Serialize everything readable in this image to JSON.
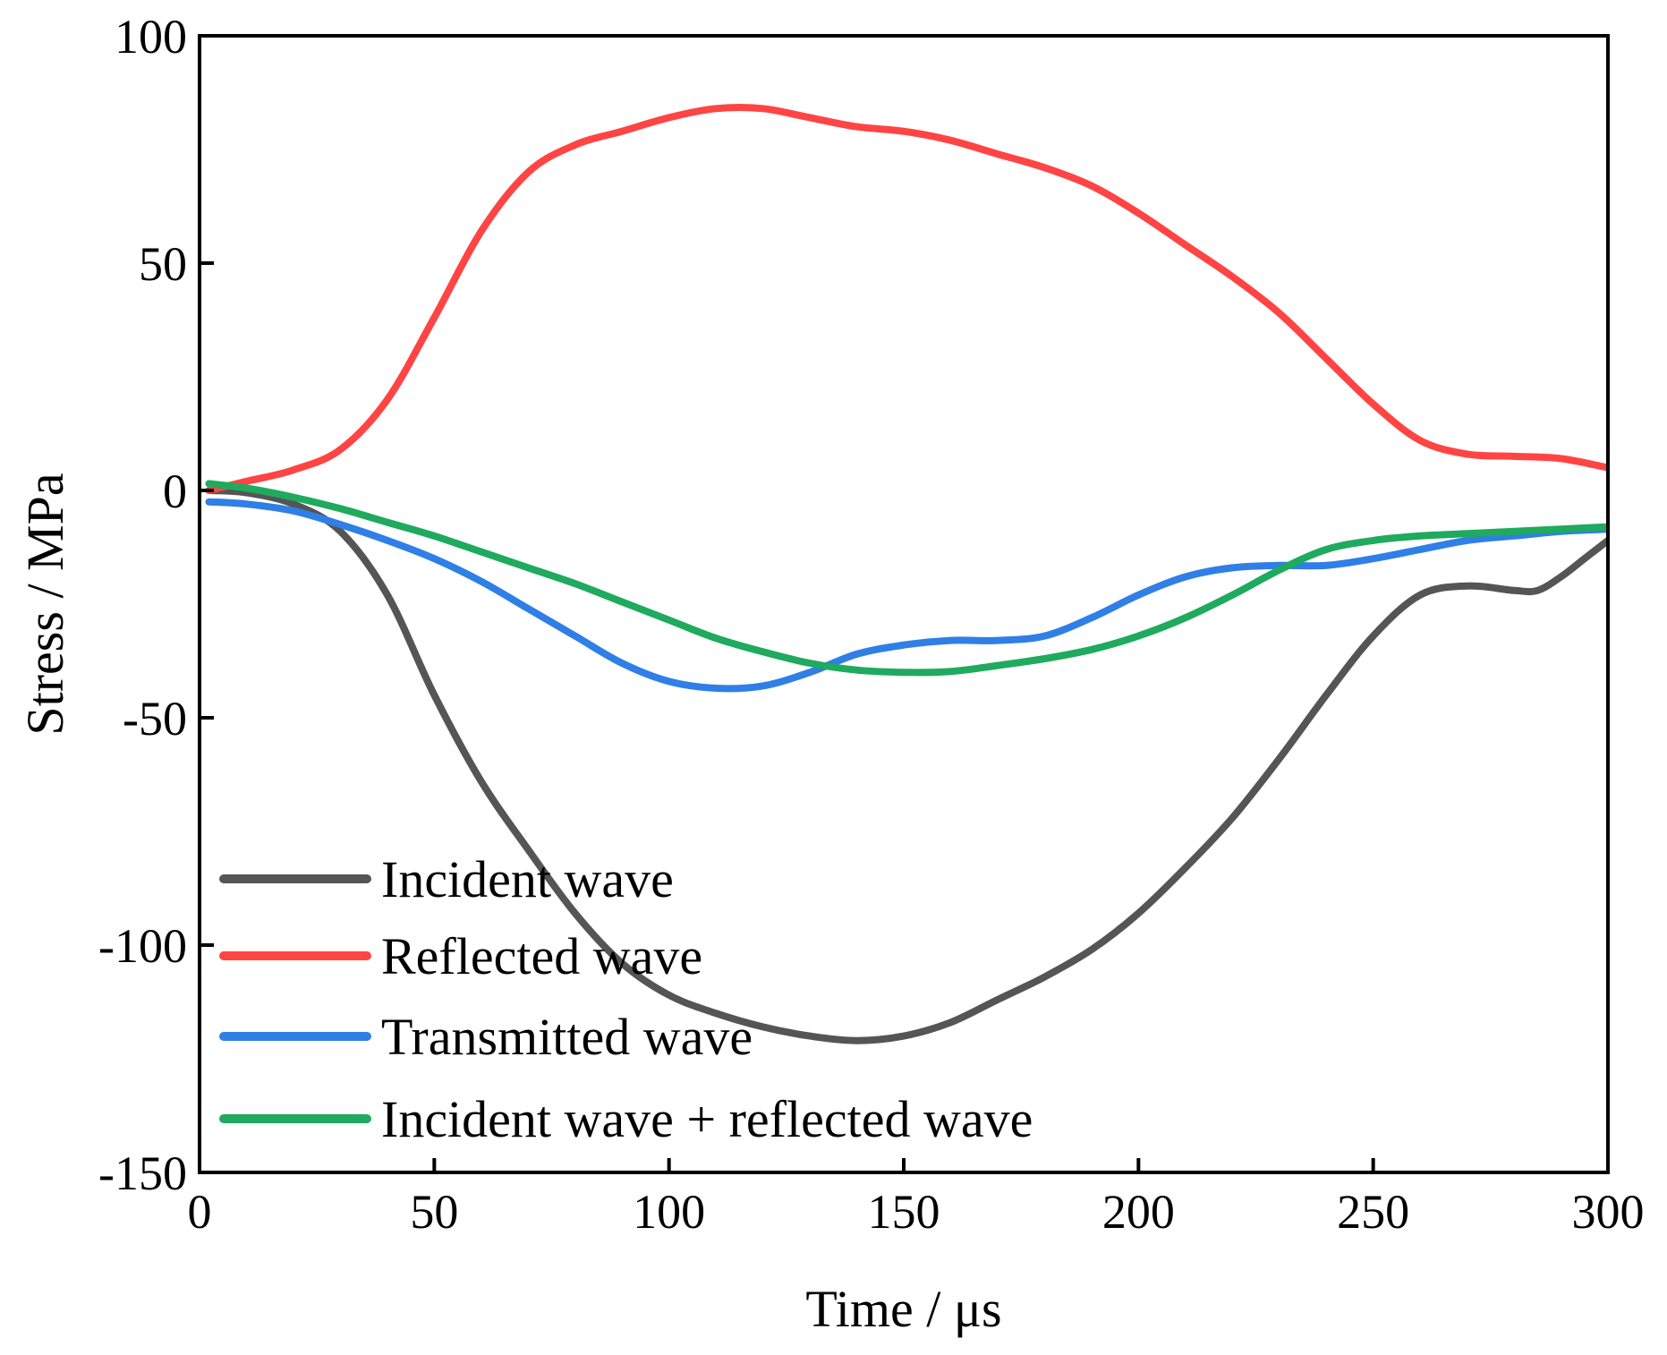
{
  "chart_data": {
    "type": "line",
    "title": "",
    "xlabel": "Time / μs",
    "ylabel": "Stress / MPa",
    "xlim": [
      0,
      300
    ],
    "ylim": [
      -150,
      100
    ],
    "xticks": [
      0,
      50,
      100,
      150,
      200,
      250,
      300
    ],
    "xtick_labels": [
      "0",
      "50",
      "100",
      "150",
      "200",
      "250",
      "300"
    ],
    "yticks": [
      -150,
      -100,
      -50,
      0,
      50,
      100
    ],
    "ytick_labels": [
      "-150",
      "-100",
      "-50",
      "0",
      "50",
      "100"
    ],
    "grid": false,
    "legend": "bottom-left",
    "series": [
      {
        "name": "Incident wave",
        "color": "#555555",
        "x": [
          2,
          10,
          20,
          30,
          40,
          50,
          60,
          70,
          80,
          90,
          100,
          110,
          120,
          130,
          140,
          150,
          160,
          170,
          180,
          190,
          200,
          210,
          220,
          230,
          240,
          250,
          260,
          270,
          280,
          285,
          290,
          295,
          300
        ],
        "y": [
          0,
          -0.5,
          -3,
          -9,
          -23,
          -45,
          -64,
          -79,
          -93,
          -104,
          -111,
          -115,
          -118,
          -120,
          -121,
          -120,
          -117,
          -112,
          -107,
          -101,
          -93,
          -83,
          -72,
          -59,
          -45,
          -32,
          -23,
          -21,
          -22,
          -22,
          -19,
          -15,
          -11
        ]
      },
      {
        "name": "Reflected wave",
        "color": "#ff4444",
        "x": [
          2,
          10,
          20,
          30,
          40,
          50,
          60,
          70,
          80,
          90,
          100,
          110,
          120,
          130,
          140,
          150,
          160,
          170,
          180,
          190,
          200,
          210,
          220,
          230,
          240,
          250,
          260,
          270,
          280,
          290,
          300
        ],
        "y": [
          0,
          2,
          4.5,
          9,
          20,
          38,
          57,
          70,
          76,
          79,
          82,
          84,
          84,
          82,
          80,
          79,
          77,
          74,
          71,
          67,
          61,
          54,
          47,
          39,
          29,
          19,
          11,
          8,
          7.5,
          7,
          5
        ]
      },
      {
        "name": "Transmitted wave",
        "color": "#2f7fe6",
        "x": [
          2,
          10,
          20,
          30,
          40,
          50,
          60,
          70,
          80,
          90,
          100,
          110,
          120,
          130,
          140,
          150,
          160,
          170,
          180,
          190,
          200,
          210,
          220,
          230,
          240,
          250,
          260,
          270,
          280,
          290,
          300
        ],
        "y": [
          -2.5,
          -3,
          -4.5,
          -7.5,
          -11,
          -15,
          -20,
          -26,
          -32,
          -38,
          -42,
          -43.5,
          -43,
          -40,
          -36,
          -34,
          -33,
          -33,
          -32,
          -28,
          -23,
          -19,
          -17,
          -16.5,
          -16.5,
          -15,
          -13,
          -11,
          -10,
          -9,
          -8.5
        ]
      },
      {
        "name": "Incident wave + reflected wave",
        "color": "#1faa5e",
        "x": [
          2,
          10,
          20,
          30,
          40,
          50,
          60,
          70,
          80,
          90,
          100,
          110,
          120,
          130,
          140,
          150,
          160,
          170,
          180,
          190,
          200,
          210,
          220,
          230,
          240,
          250,
          260,
          270,
          280,
          290,
          300
        ],
        "y": [
          1.5,
          0.5,
          -1.5,
          -4,
          -7,
          -10,
          -13.5,
          -17,
          -20.5,
          -24.5,
          -28.5,
          -32.5,
          -35.5,
          -38,
          -39.5,
          -40,
          -39.8,
          -38.5,
          -37,
          -35,
          -32,
          -28,
          -23,
          -17.5,
          -13,
          -11,
          -10,
          -9.5,
          -9,
          -8.5,
          -8
        ]
      }
    ]
  }
}
